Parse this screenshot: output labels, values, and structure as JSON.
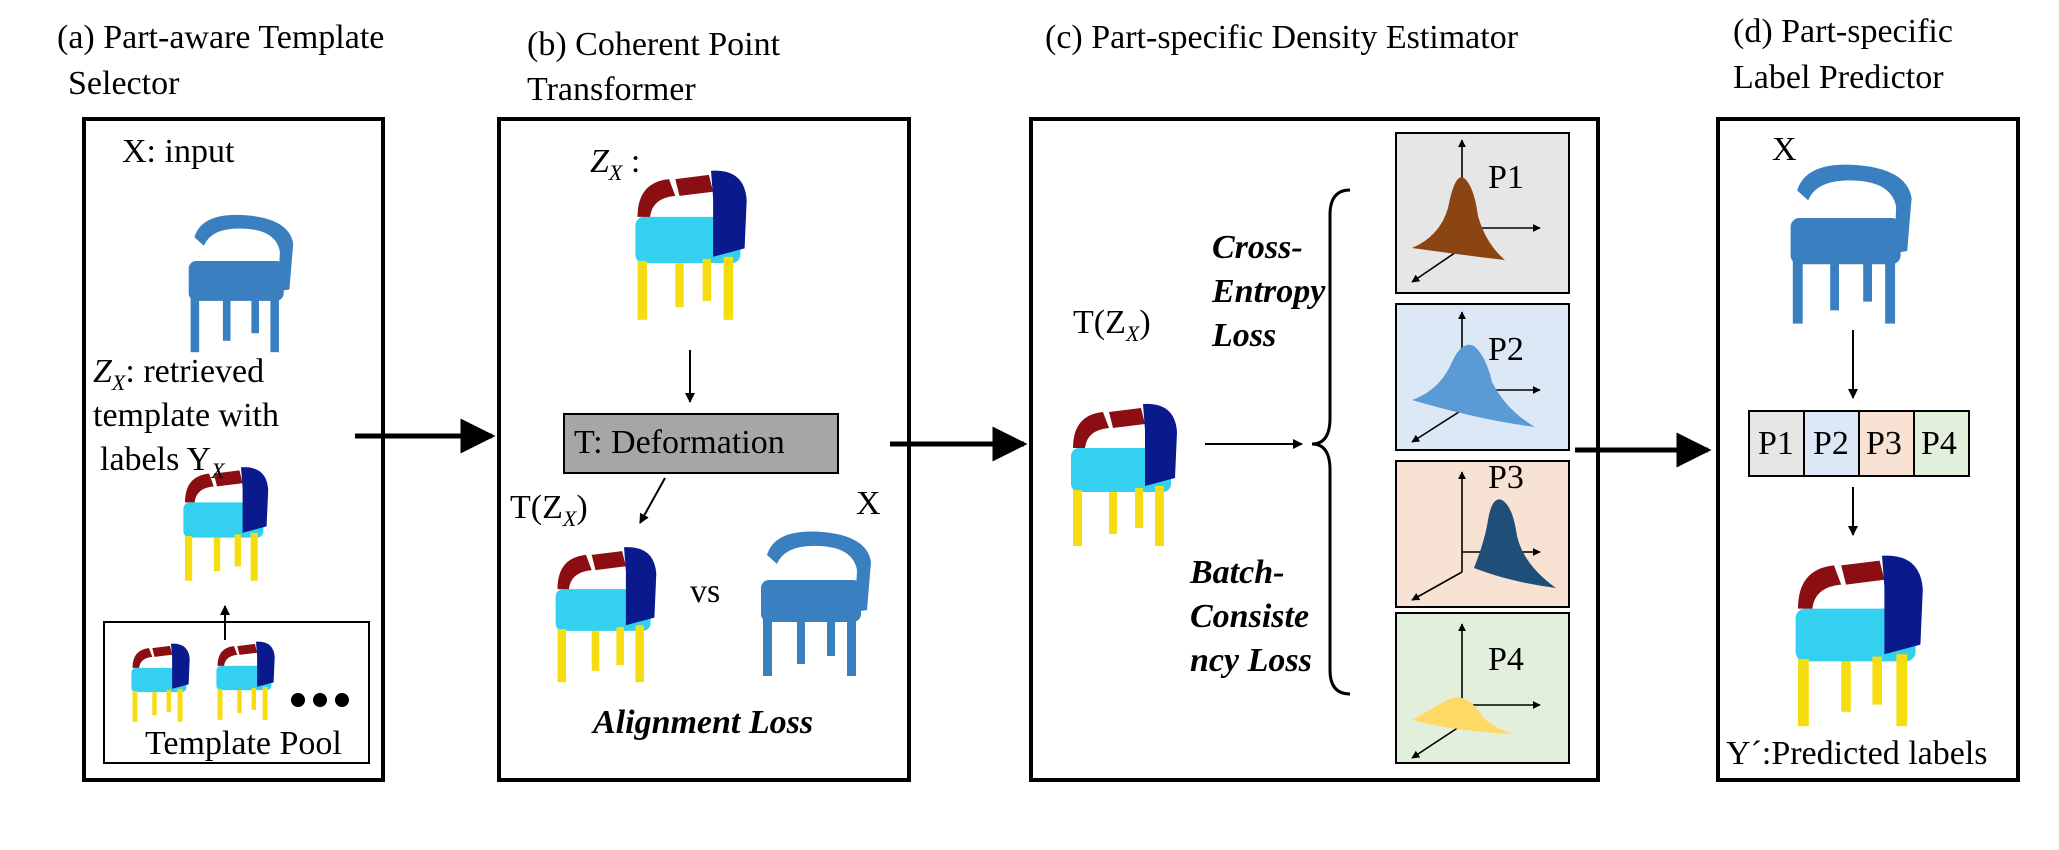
{
  "panel_a": {
    "caption_line1": "(a)  Part-aware Template",
    "caption_line2": "Selector",
    "input_label": "X: input",
    "zx_symbol": "Z",
    "zx_sub": "X",
    "zx_desc": ": retrieved",
    "desc_line2": "template with",
    "desc_labels": "labels Y",
    "desc_labels_sub": "X",
    "pool_label": "Template Pool"
  },
  "panel_b": {
    "caption_line1": "(b) Coherent Point",
    "caption_line2": "Transformer",
    "zx_symbol": "Z",
    "zx_sub": "X",
    "zx_colon": " :",
    "deform_label": "T: Deformation",
    "tzx_prefix": "T(Z",
    "tzx_sub": "X",
    "tzx_suffix": ")",
    "vs_label": "vs",
    "x_label": "X",
    "loss_label": "Alignment Loss"
  },
  "panel_c": {
    "caption": "(c) Part-specific Density Estimator",
    "tzx_prefix": "T(Z",
    "tzx_sub": "X",
    "tzx_suffix": ")",
    "ce_loss": [
      "Cross-",
      "Entropy",
      "Loss"
    ],
    "bc_loss": [
      "Batch-",
      "Consiste",
      "ncy Loss"
    ],
    "densities": [
      {
        "label": "P1",
        "bg": "#e6e6e6",
        "fill": "#8b4513"
      },
      {
        "label": "P2",
        "bg": "#dce8f5",
        "fill": "#5b9bd5"
      },
      {
        "label": "P3",
        "bg": "#f8e2d4",
        "fill": "#1f4e79"
      },
      {
        "label": "P4",
        "bg": "#e2efda",
        "fill": "#ffd966"
      }
    ]
  },
  "panel_d": {
    "caption_line1": "(d) Part-specific",
    "caption_line2": "Label Predictor",
    "x_label": "X",
    "parts": [
      {
        "label": "P1",
        "bg": "#e6e6e6"
      },
      {
        "label": "P2",
        "bg": "#dce8f5"
      },
      {
        "label": "P3",
        "bg": "#f8e2d4"
      },
      {
        "label": "P4",
        "bg": "#e2efda"
      }
    ],
    "pred_label": "Y´:Predicted labels"
  },
  "colors": {
    "chair_blue": "#3a7fc0",
    "seg_cyan": "#33d0f0",
    "seg_navy": "#0a1a8c",
    "seg_red": "#8b0f12",
    "seg_yellow": "#f5dd10",
    "deform_box": "#a6a6a6"
  }
}
